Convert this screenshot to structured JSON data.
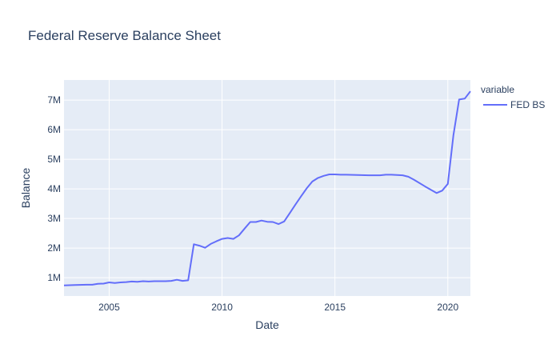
{
  "chart_data": {
    "type": "line",
    "title": "Federal Reserve Balance Sheet",
    "xlabel": "Date",
    "ylabel": "Balance",
    "legend_title": "variable",
    "legend_position": "top-right",
    "grid": true,
    "colors": {
      "plot_bg": "#E5ECF6",
      "grid": "#ffffff",
      "line": "#636EFA",
      "text": "#2a3f5f"
    },
    "xlim": [
      2003.0,
      2021.0
    ],
    "ylim": [
      380000,
      7680000
    ],
    "x_ticks": [
      {
        "value": 2005,
        "label": "2005"
      },
      {
        "value": 2010,
        "label": "2010"
      },
      {
        "value": 2015,
        "label": "2015"
      },
      {
        "value": 2020,
        "label": "2020"
      }
    ],
    "y_ticks": [
      {
        "value": 1000000,
        "label": "1M"
      },
      {
        "value": 2000000,
        "label": "2M"
      },
      {
        "value": 3000000,
        "label": "3M"
      },
      {
        "value": 4000000,
        "label": "4M"
      },
      {
        "value": 5000000,
        "label": "5M"
      },
      {
        "value": 6000000,
        "label": "6M"
      },
      {
        "value": 7000000,
        "label": "7M"
      }
    ],
    "series": [
      {
        "name": "FED BS",
        "x": [
          2003.0,
          2003.5,
          2004.0,
          2004.25,
          2004.5,
          2004.75,
          2005.0,
          2005.25,
          2005.5,
          2005.75,
          2006.0,
          2006.25,
          2006.5,
          2006.75,
          2007.0,
          2007.25,
          2007.5,
          2007.75,
          2008.0,
          2008.25,
          2008.5,
          2008.75,
          2009.0,
          2009.25,
          2009.5,
          2009.75,
          2010.0,
          2010.25,
          2010.5,
          2010.75,
          2011.0,
          2011.25,
          2011.5,
          2011.75,
          2012.0,
          2012.25,
          2012.5,
          2012.75,
          2013.0,
          2013.25,
          2013.5,
          2013.75,
          2014.0,
          2014.25,
          2014.5,
          2014.75,
          2015.0,
          2015.25,
          2015.5,
          2016.0,
          2016.5,
          2017.0,
          2017.25,
          2017.5,
          2018.0,
          2018.25,
          2018.5,
          2019.0,
          2019.5,
          2019.75,
          2020.0,
          2020.25,
          2020.5,
          2020.75,
          2021.0
        ],
        "y": [
          740000,
          750000,
          760000,
          760000,
          790000,
          800000,
          840000,
          820000,
          840000,
          850000,
          870000,
          860000,
          880000,
          870000,
          880000,
          880000,
          880000,
          890000,
          930000,
          890000,
          910000,
          2130000,
          2080000,
          2010000,
          2140000,
          2230000,
          2310000,
          2340000,
          2310000,
          2430000,
          2660000,
          2880000,
          2880000,
          2930000,
          2890000,
          2880000,
          2810000,
          2900000,
          3180000,
          3470000,
          3750000,
          4020000,
          4250000,
          4370000,
          4440000,
          4490000,
          4490000,
          4480000,
          4480000,
          4470000,
          4460000,
          4460000,
          4480000,
          4480000,
          4460000,
          4410000,
          4310000,
          4080000,
          3860000,
          3940000,
          4170000,
          5820000,
          7020000,
          7050000,
          7300000
        ]
      }
    ]
  }
}
